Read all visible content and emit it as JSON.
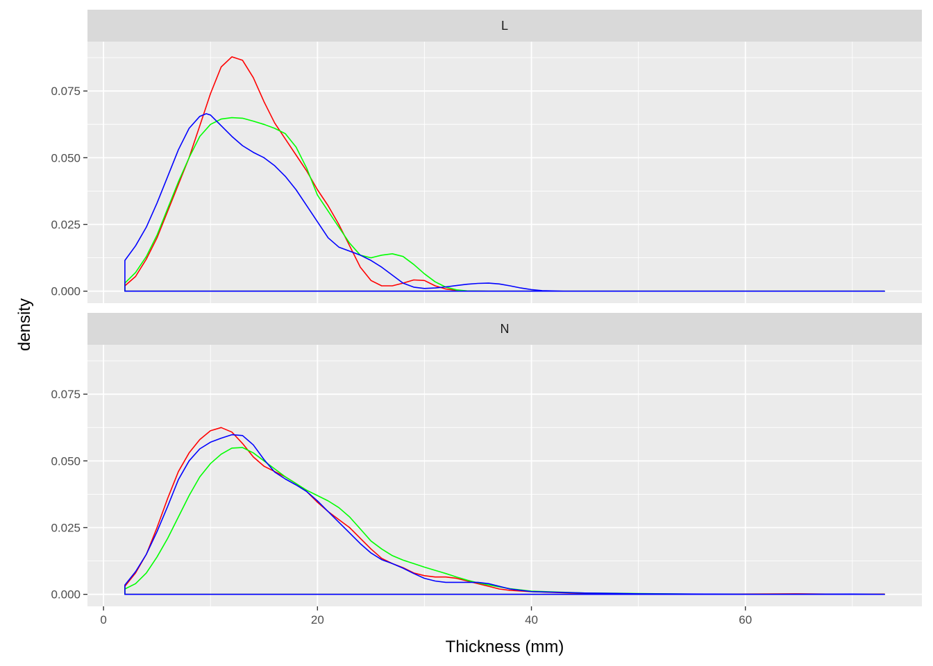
{
  "chart_data": {
    "type": "line",
    "xlabel": "Thickness (mm)",
    "ylabel": "density",
    "xlim": [
      -1.5,
      76.5
    ],
    "ylim": [
      -0.0045,
      0.0935
    ],
    "x_ticks": [
      0,
      20,
      40,
      60
    ],
    "x_tick_labels": [
      "0",
      "20",
      "40",
      "60"
    ],
    "y_ticks": [
      0,
      0.025,
      0.05,
      0.075
    ],
    "y_tick_labels": [
      "0.000",
      "0.025",
      "0.050",
      "0.075"
    ],
    "grid": true,
    "legend": "none",
    "facets": [
      {
        "label": "L",
        "series": [
          {
            "color": "#FF0000",
            "points": [
              [
                2,
                0.002
              ],
              [
                3,
                0.0055
              ],
              [
                4,
                0.012
              ],
              [
                5,
                0.02
              ],
              [
                6,
                0.03
              ],
              [
                7,
                0.04
              ],
              [
                8,
                0.05
              ],
              [
                9,
                0.062
              ],
              [
                10,
                0.074
              ],
              [
                11,
                0.084
              ],
              [
                12,
                0.0878
              ],
              [
                13,
                0.0865
              ],
              [
                14,
                0.08
              ],
              [
                15,
                0.071
              ],
              [
                16,
                0.063
              ],
              [
                17,
                0.057
              ],
              [
                18,
                0.051
              ],
              [
                19,
                0.045
              ],
              [
                20,
                0.038
              ],
              [
                21,
                0.032
              ],
              [
                22,
                0.025
              ],
              [
                23,
                0.017
              ],
              [
                24,
                0.009
              ],
              [
                25,
                0.004
              ],
              [
                26,
                0.002
              ],
              [
                27,
                0.002
              ],
              [
                28,
                0.003
              ],
              [
                29,
                0.0042
              ],
              [
                30,
                0.004
              ],
              [
                31,
                0.002
              ],
              [
                32,
                0.0008
              ],
              [
                33,
                0.0003
              ],
              [
                34,
                0.0001
              ],
              [
                36,
                0
              ],
              [
                40,
                0
              ],
              [
                73,
                0
              ]
            ]
          },
          {
            "color": "#00FF00",
            "points": [
              [
                2,
                0.003
              ],
              [
                3,
                0.007
              ],
              [
                4,
                0.013
              ],
              [
                5,
                0.021
              ],
              [
                6,
                0.031
              ],
              [
                7,
                0.041
              ],
              [
                8,
                0.05
              ],
              [
                9,
                0.058
              ],
              [
                10,
                0.0625
              ],
              [
                11,
                0.0645
              ],
              [
                12,
                0.065
              ],
              [
                13,
                0.0648
              ],
              [
                14,
                0.0637
              ],
              [
                15,
                0.0625
              ],
              [
                16,
                0.061
              ],
              [
                17,
                0.059
              ],
              [
                18,
                0.054
              ],
              [
                19,
                0.046
              ],
              [
                20,
                0.036
              ],
              [
                21,
                0.03
              ],
              [
                22,
                0.024
              ],
              [
                23,
                0.018
              ],
              [
                24,
                0.0135
              ],
              [
                25,
                0.0125
              ],
              [
                26,
                0.0135
              ],
              [
                27,
                0.014
              ],
              [
                28,
                0.013
              ],
              [
                29,
                0.01
              ],
              [
                30,
                0.0065
              ],
              [
                31,
                0.0035
              ],
              [
                32,
                0.0015
              ],
              [
                33,
                0.0005
              ],
              [
                34,
                0.0001
              ],
              [
                36,
                0
              ],
              [
                40,
                0
              ],
              [
                73,
                0
              ]
            ]
          },
          {
            "color": "#0000FF",
            "points": [
              [
                2,
                0.0115
              ],
              [
                3,
                0.017
              ],
              [
                4,
                0.024
              ],
              [
                5,
                0.033
              ],
              [
                6,
                0.043
              ],
              [
                7,
                0.053
              ],
              [
                8,
                0.061
              ],
              [
                9,
                0.0655
              ],
              [
                9.6,
                0.0665
              ],
              [
                10,
                0.066
              ],
              [
                11,
                0.062
              ],
              [
                12,
                0.058
              ],
              [
                13,
                0.0545
              ],
              [
                14,
                0.052
              ],
              [
                15,
                0.05
              ],
              [
                16,
                0.047
              ],
              [
                17,
                0.043
              ],
              [
                18,
                0.038
              ],
              [
                19,
                0.032
              ],
              [
                20,
                0.026
              ],
              [
                21,
                0.02
              ],
              [
                22,
                0.0165
              ],
              [
                23,
                0.015
              ],
              [
                24,
                0.0135
              ],
              [
                25,
                0.0115
              ],
              [
                26,
                0.009
              ],
              [
                27,
                0.006
              ],
              [
                28,
                0.003
              ],
              [
                29,
                0.0015
              ],
              [
                30,
                0.001
              ],
              [
                31,
                0.0012
              ],
              [
                32,
                0.0016
              ],
              [
                33,
                0.0021
              ],
              [
                34,
                0.0026
              ],
              [
                35,
                0.0029
              ],
              [
                36,
                0.003
              ],
              [
                37,
                0.0027
              ],
              [
                38,
                0.002
              ],
              [
                39,
                0.0012
              ],
              [
                40,
                0.0006
              ],
              [
                41,
                0.0002
              ],
              [
                42,
                0.0001
              ],
              [
                43,
                0
              ],
              [
                73,
                0
              ]
            ]
          }
        ]
      },
      {
        "label": "N",
        "series": [
          {
            "color": "#FF0000",
            "points": [
              [
                2,
                0.003
              ],
              [
                3,
                0.008
              ],
              [
                4,
                0.015
              ],
              [
                5,
                0.025
              ],
              [
                6,
                0.036
              ],
              [
                7,
                0.046
              ],
              [
                8,
                0.053
              ],
              [
                9,
                0.058
              ],
              [
                10,
                0.0613
              ],
              [
                11,
                0.0625
              ],
              [
                12,
                0.0608
              ],
              [
                13,
                0.0565
              ],
              [
                14,
                0.0515
              ],
              [
                15,
                0.048
              ],
              [
                16,
                0.046
              ],
              [
                17,
                0.044
              ],
              [
                18,
                0.0415
              ],
              [
                19,
                0.0385
              ],
              [
                20,
                0.0345
              ],
              [
                21,
                0.031
              ],
              [
                22,
                0.028
              ],
              [
                23,
                0.025
              ],
              [
                24,
                0.021
              ],
              [
                25,
                0.017
              ],
              [
                26,
                0.0135
              ],
              [
                27,
                0.0115
              ],
              [
                28,
                0.01
              ],
              [
                29,
                0.008
              ],
              [
                30,
                0.007
              ],
              [
                31,
                0.0065
              ],
              [
                32,
                0.0065
              ],
              [
                33,
                0.006
              ],
              [
                34,
                0.005
              ],
              [
                35,
                0.004
              ],
              [
                36,
                0.003
              ],
              [
                37,
                0.002
              ],
              [
                38,
                0.0015
              ],
              [
                40,
                0.001
              ],
              [
                45,
                0.0003
              ],
              [
                50,
                0.0001
              ],
              [
                55,
                0
              ],
              [
                65,
                0.0002
              ],
              [
                70,
                0
              ],
              [
                73,
                0.0001
              ]
            ]
          },
          {
            "color": "#00FF00",
            "points": [
              [
                2,
                0.002
              ],
              [
                3,
                0.004
              ],
              [
                4,
                0.008
              ],
              [
                5,
                0.014
              ],
              [
                6,
                0.021
              ],
              [
                7,
                0.029
              ],
              [
                8,
                0.037
              ],
              [
                9,
                0.044
              ],
              [
                10,
                0.049
              ],
              [
                11,
                0.0525
              ],
              [
                12,
                0.0548
              ],
              [
                13,
                0.055
              ],
              [
                14,
                0.053
              ],
              [
                15,
                0.05
              ],
              [
                16,
                0.047
              ],
              [
                17,
                0.044
              ],
              [
                18,
                0.0415
              ],
              [
                19,
                0.039
              ],
              [
                20,
                0.037
              ],
              [
                21,
                0.035
              ],
              [
                22,
                0.0325
              ],
              [
                23,
                0.029
              ],
              [
                24,
                0.0245
              ],
              [
                25,
                0.02
              ],
              [
                26,
                0.017
              ],
              [
                27,
                0.0145
              ],
              [
                28,
                0.0128
              ],
              [
                29,
                0.0115
              ],
              [
                30,
                0.0102
              ],
              [
                31,
                0.009
              ],
              [
                32,
                0.0078
              ],
              [
                33,
                0.0065
              ],
              [
                34,
                0.0053
              ],
              [
                35,
                0.0043
              ],
              [
                36,
                0.0035
              ],
              [
                37,
                0.0028
              ],
              [
                38,
                0.0021
              ],
              [
                40,
                0.0012
              ],
              [
                45,
                0.0005
              ],
              [
                50,
                0.0003
              ],
              [
                55,
                0.0001
              ],
              [
                60,
                0
              ],
              [
                65,
                0
              ],
              [
                70,
                0
              ],
              [
                73,
                0
              ]
            ]
          },
          {
            "color": "#0000FF",
            "points": [
              [
                2,
                0.0035
              ],
              [
                3,
                0.0085
              ],
              [
                4,
                0.015
              ],
              [
                5,
                0.0235
              ],
              [
                6,
                0.033
              ],
              [
                7,
                0.043
              ],
              [
                8,
                0.05
              ],
              [
                9,
                0.0545
              ],
              [
                10,
                0.057
              ],
              [
                11,
                0.0585
              ],
              [
                12,
                0.0598
              ],
              [
                13,
                0.0595
              ],
              [
                14,
                0.056
              ],
              [
                15,
                0.0505
              ],
              [
                16,
                0.0458
              ],
              [
                17,
                0.0432
              ],
              [
                18,
                0.041
              ],
              [
                19,
                0.0385
              ],
              [
                20,
                0.035
              ],
              [
                21,
                0.031
              ],
              [
                22,
                0.027
              ],
              [
                23,
                0.023
              ],
              [
                24,
                0.019
              ],
              [
                25,
                0.0155
              ],
              [
                26,
                0.013
              ],
              [
                27,
                0.0115
              ],
              [
                28,
                0.0098
              ],
              [
                29,
                0.0078
              ],
              [
                30,
                0.006
              ],
              [
                31,
                0.005
              ],
              [
                32,
                0.0045
              ],
              [
                33,
                0.0045
              ],
              [
                34,
                0.0045
              ],
              [
                35,
                0.0045
              ],
              [
                36,
                0.004
              ],
              [
                37,
                0.003
              ],
              [
                38,
                0.002
              ],
              [
                39,
                0.0015
              ],
              [
                40,
                0.001
              ],
              [
                45,
                0.0005
              ],
              [
                50,
                0.0002
              ],
              [
                57,
                0.0001
              ],
              [
                62,
                0
              ],
              [
                70,
                0.0001
              ],
              [
                73,
                0
              ]
            ]
          }
        ]
      }
    ]
  }
}
